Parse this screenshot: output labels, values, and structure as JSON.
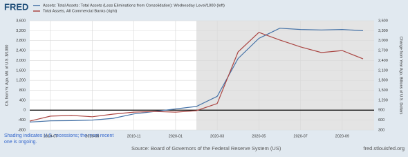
{
  "chart_data": {
    "type": "line",
    "logo": "FRED",
    "x": [
      "2019-06",
      "2019-07",
      "2019-08",
      "2019-09",
      "2019-10",
      "2019-11",
      "2019-12",
      "2020-01",
      "2020-02",
      "2020-03",
      "2020-04",
      "2020-05",
      "2020-06",
      "2020-07",
      "2020-08",
      "2020-09",
      "2020-10"
    ],
    "series": [
      {
        "name": "Assets: Total Assets: Total Assets (Less Eliminations from Consolidation): Wednesday Level/1000 (left)",
        "color": "#4572a7",
        "values": [
          -480,
          -430,
          -420,
          -400,
          -330,
          -150,
          -50,
          50,
          150,
          555,
          2080,
          2890,
          3300,
          3250,
          3230,
          3250,
          3200
        ]
      },
      {
        "name": "Total Assets, All Commercial Banks (right)",
        "color": "#aa4643",
        "axis": "y2",
        "values": [
          570,
          720,
          740,
          700,
          780,
          840,
          860,
          840,
          885,
          1100,
          2660,
          3250,
          3020,
          2810,
          2640,
          2700,
          2450
        ]
      }
    ],
    "xlim": [
      "2019-06",
      "2020-10"
    ],
    "xticks": [
      "2019-07",
      "2019-09",
      "2019-11",
      "2020-01",
      "2020-03",
      "2020-05",
      "2020-07",
      "2020-09"
    ],
    "ylim": [
      -800,
      3600
    ],
    "yticks": [
      -800,
      -400,
      0,
      400,
      {
        "value": 800,
        "label": "800"
      },
      {
        "value": 1200,
        "label": "1,200"
      },
      {
        "value": 1600,
        "label": "1,600"
      },
      {
        "value": 2000,
        "label": "2,000"
      },
      {
        "value": 2400,
        "label": "2,400"
      },
      {
        "value": 2800,
        "label": "2,800"
      },
      {
        "value": 3200,
        "label": "3,200"
      },
      {
        "value": 3600,
        "label": "3,600"
      }
    ],
    "y2lim": [
      300,
      3600
    ],
    "y2ticks": [
      300,
      600,
      900,
      {
        "value": 1200,
        "label": "1,200"
      },
      {
        "value": 1500,
        "label": "1,500"
      },
      {
        "value": 1800,
        "label": "1,800"
      },
      {
        "value": 2100,
        "label": "2,100"
      },
      {
        "value": 2400,
        "label": "2,400"
      },
      {
        "value": 2700,
        "label": "2,700"
      },
      {
        "value": 3000,
        "label": "3,000"
      },
      {
        "value": 3300,
        "label": "3,300"
      },
      {
        "value": 3600,
        "label": "3,600"
      }
    ],
    "ylabel": "Ch. from Yr. Ago, Mil. of U.S. $/1000",
    "y2label": "Change from Year Ago, Billions of U.S. Dollars",
    "zero_line": 0,
    "recession_start": "2020-02",
    "grid": true,
    "note": "Shading indicates U.S. recessions; the most recent one is ongoing.",
    "source": "Source: Board of Governors of the Federal Reserve System (US)",
    "site": "fred.stlouisfed.org"
  }
}
